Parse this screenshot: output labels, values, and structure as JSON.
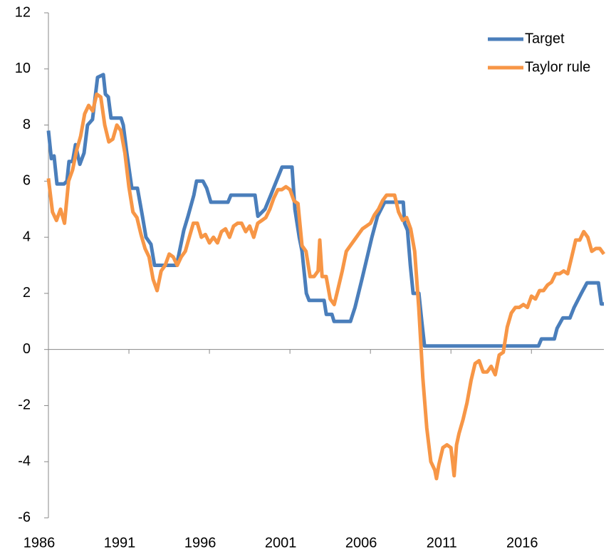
{
  "chart_data": {
    "type": "line",
    "xlim": [
      1986,
      2020.5
    ],
    "xticks": [
      1986,
      1991,
      1996,
      2001,
      2006,
      2011,
      2016
    ],
    "ylim": [
      -6,
      12
    ],
    "yticks": [
      -6,
      -4,
      -2,
      0,
      2,
      4,
      6,
      8,
      10,
      12
    ],
    "legend": "upper right",
    "series": [
      {
        "name": "Target",
        "color": "#4a7ebb",
        "x": [
          1986.0,
          1986.18,
          1986.35,
          1986.53,
          1986.97,
          1987.15,
          1987.28,
          1987.5,
          1987.68,
          1987.95,
          1988.21,
          1988.43,
          1988.74,
          1989.05,
          1989.41,
          1989.54,
          1989.72,
          1989.89,
          1990.51,
          1990.65,
          1990.87,
          1991.18,
          1991.53,
          1991.84,
          1992.06,
          1992.37,
          1992.59,
          1993.96,
          1994.41,
          1994.67,
          1995.03,
          1995.2,
          1995.6,
          1995.83,
          1996.09,
          1997.15,
          1997.33,
          1998.83,
          1999.01,
          1999.45,
          1999.81,
          2000.16,
          2000.51,
          2001.13,
          2001.31,
          2001.58,
          2001.75,
          2002.02,
          2002.19,
          2003.12,
          2003.26,
          2003.61,
          2003.74,
          2004.76,
          2005.04,
          2005.47,
          2005.78,
          2006.09,
          2006.44,
          2006.88,
          2008.04,
          2008.12,
          2008.3,
          2008.48,
          2008.65,
          2009.01,
          2009.19,
          2009.36,
          2016.44,
          2016.62,
          2017.42,
          2017.59,
          2017.95,
          2018.39,
          2018.65,
          2019.1,
          2019.45,
          2020.16,
          2020.34,
          2020.5
        ],
        "values": [
          7.8,
          6.8,
          6.9,
          5.9,
          5.9,
          6.0,
          6.7,
          6.7,
          7.3,
          6.6,
          7.0,
          8.0,
          8.2,
          9.7,
          9.8,
          9.1,
          9.0,
          8.25,
          8.25,
          8.0,
          7.0,
          5.75,
          5.75,
          4.75,
          4.0,
          3.75,
          3.0,
          3.0,
          4.25,
          4.75,
          5.5,
          6.0,
          6.0,
          5.75,
          5.25,
          5.25,
          5.5,
          5.5,
          4.75,
          5.0,
          5.5,
          6.0,
          6.5,
          6.5,
          5.0,
          4.0,
          3.5,
          2.0,
          1.75,
          1.75,
          1.25,
          1.25,
          1.0,
          1.0,
          1.5,
          2.5,
          3.25,
          4.0,
          4.75,
          5.25,
          5.25,
          4.5,
          4.25,
          3.0,
          2.0,
          2.0,
          1.0,
          0.125,
          0.125,
          0.375,
          0.375,
          0.75,
          1.125,
          1.125,
          1.5,
          2.0,
          2.375,
          2.375,
          1.625,
          1.625
        ]
      },
      {
        "name": "Taylor rule",
        "color": "#f79646",
        "x": [
          1986.0,
          1986.25,
          1986.5,
          1986.75,
          1987.0,
          1987.25,
          1987.5,
          1987.75,
          1988.0,
          1988.25,
          1988.5,
          1988.75,
          1989.0,
          1989.25,
          1989.5,
          1989.75,
          1990.0,
          1990.25,
          1990.5,
          1990.75,
          1991.0,
          1991.25,
          1991.5,
          1991.75,
          1992.0,
          1992.25,
          1992.5,
          1992.75,
          1993.0,
          1993.25,
          1993.5,
          1993.75,
          1994.0,
          1994.25,
          1994.5,
          1994.75,
          1995.0,
          1995.25,
          1995.5,
          1995.75,
          1996.0,
          1996.25,
          1996.5,
          1996.75,
          1997.0,
          1997.25,
          1997.5,
          1997.75,
          1998.0,
          1998.25,
          1998.5,
          1998.75,
          1999.0,
          1999.25,
          1999.5,
          1999.75,
          2000.0,
          2000.25,
          2000.5,
          2000.75,
          2001.0,
          2001.25,
          2001.5,
          2001.75,
          2002.0,
          2002.25,
          2002.5,
          2002.75,
          2002.85,
          2003.0,
          2003.25,
          2003.5,
          2003.75,
          2004.0,
          2004.25,
          2004.5,
          2004.75,
          2005.0,
          2005.25,
          2005.5,
          2005.75,
          2006.0,
          2006.25,
          2006.5,
          2006.75,
          2007.0,
          2007.25,
          2007.5,
          2007.75,
          2008.0,
          2008.25,
          2008.5,
          2008.75,
          2009.0,
          2009.25,
          2009.5,
          2009.75,
          2010.0,
          2010.1,
          2010.25,
          2010.5,
          2010.75,
          2011.0,
          2011.1,
          2011.2,
          2011.35,
          2011.5,
          2011.75,
          2012.0,
          2012.25,
          2012.5,
          2012.75,
          2013.0,
          2013.25,
          2013.5,
          2013.75,
          2014.0,
          2014.25,
          2014.5,
          2014.75,
          2015.0,
          2015.25,
          2015.5,
          2015.75,
          2016.0,
          2016.25,
          2016.5,
          2016.75,
          2017.0,
          2017.25,
          2017.5,
          2017.75,
          2018.0,
          2018.25,
          2018.5,
          2018.75,
          2019.0,
          2019.25,
          2019.5,
          2019.75,
          2020.0,
          2020.25,
          2020.5
        ],
        "values": [
          6.1,
          4.9,
          4.6,
          5.0,
          4.5,
          6.0,
          6.4,
          7.1,
          7.6,
          8.4,
          8.7,
          8.5,
          9.1,
          9.0,
          8.0,
          7.4,
          7.5,
          8.0,
          7.8,
          7.0,
          5.8,
          4.9,
          4.7,
          4.1,
          3.6,
          3.3,
          2.5,
          2.1,
          2.8,
          3.0,
          3.4,
          3.3,
          3.0,
          3.3,
          3.5,
          4.0,
          4.5,
          4.5,
          4.0,
          4.1,
          3.8,
          4.0,
          3.8,
          4.2,
          4.3,
          4.0,
          4.4,
          4.5,
          4.5,
          4.2,
          4.4,
          4.0,
          4.5,
          4.6,
          4.7,
          5.0,
          5.4,
          5.7,
          5.7,
          5.8,
          5.7,
          5.3,
          5.2,
          3.7,
          3.5,
          2.6,
          2.6,
          2.8,
          3.9,
          2.6,
          2.6,
          1.8,
          1.6,
          2.2,
          2.8,
          3.5,
          3.7,
          3.9,
          4.1,
          4.3,
          4.4,
          4.5,
          4.8,
          5.0,
          5.3,
          5.5,
          5.5,
          5.5,
          4.9,
          4.6,
          4.7,
          4.3,
          3.5,
          1.5,
          -1.0,
          -2.8,
          -4.0,
          -4.3,
          -4.6,
          -4.1,
          -3.5,
          -3.4,
          -3.5,
          -4.0,
          -4.5,
          -3.4,
          -3.0,
          -2.5,
          -1.9,
          -1.1,
          -0.5,
          -0.4,
          -0.8,
          -0.8,
          -0.6,
          -0.9,
          -0.2,
          -0.1,
          0.8,
          1.3,
          1.5,
          1.5,
          1.6,
          1.5,
          1.9,
          1.8,
          2.1,
          2.1,
          2.3,
          2.4,
          2.7,
          2.7,
          2.8,
          2.7,
          3.3,
          3.9,
          3.9,
          4.2,
          4.0,
          3.5,
          3.6,
          3.6,
          3.4
        ]
      }
    ]
  }
}
